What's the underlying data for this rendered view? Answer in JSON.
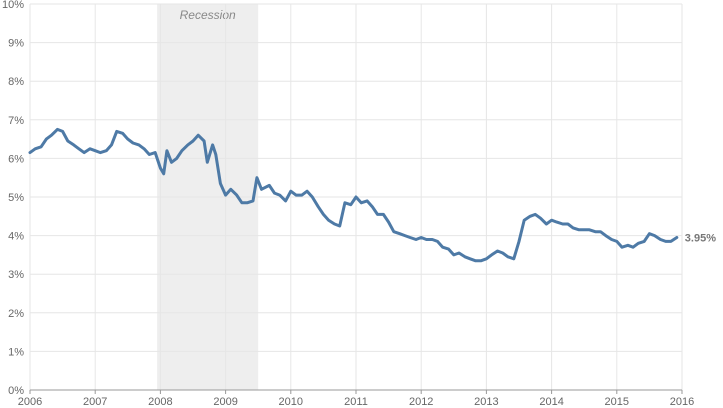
{
  "chart_data": {
    "type": "line",
    "title": "",
    "xlabel": "",
    "ylabel": "",
    "x_range": [
      2006,
      2016
    ],
    "ylim": [
      0,
      10
    ],
    "grid": true,
    "x_ticks": [
      "2006",
      "2007",
      "2008",
      "2009",
      "2010",
      "2011",
      "2012",
      "2013",
      "2014",
      "2015",
      "2016"
    ],
    "y_ticks": [
      "0%",
      "1%",
      "2%",
      "3%",
      "4%",
      "5%",
      "6%",
      "7%",
      "8%",
      "9%",
      "10%"
    ],
    "recession": {
      "label": "Recession",
      "start": 2007.95,
      "end": 2009.5
    },
    "end_label": "3.95%",
    "colors": {
      "line": "#4e7aa6",
      "recession_band": "#eeeeee",
      "grid": "#e6e6e6"
    },
    "series": [
      {
        "x": [
          2006.0,
          2006.08,
          2006.17,
          2006.25,
          2006.33,
          2006.42,
          2006.5,
          2006.58,
          2006.67,
          2006.75,
          2006.83,
          2006.92,
          2007.0,
          2007.08,
          2007.17,
          2007.25,
          2007.33,
          2007.42,
          2007.5,
          2007.58,
          2007.67,
          2007.75,
          2007.83,
          2007.92,
          2008.0,
          2008.05,
          2008.1,
          2008.17,
          2008.25,
          2008.33,
          2008.42,
          2008.5,
          2008.58,
          2008.67,
          2008.72,
          2008.8,
          2008.85,
          2008.92,
          2009.0,
          2009.08,
          2009.17,
          2009.25,
          2009.33,
          2009.42,
          2009.48,
          2009.55,
          2009.67,
          2009.75,
          2009.83,
          2009.92,
          2010.0,
          2010.08,
          2010.17,
          2010.25,
          2010.33,
          2010.42,
          2010.5,
          2010.58,
          2010.67,
          2010.75,
          2010.83,
          2010.92,
          2011.0,
          2011.08,
          2011.17,
          2011.25,
          2011.33,
          2011.42,
          2011.5,
          2011.58,
          2011.67,
          2011.75,
          2011.83,
          2011.92,
          2012.0,
          2012.08,
          2012.17,
          2012.25,
          2012.33,
          2012.42,
          2012.5,
          2012.58,
          2012.67,
          2012.75,
          2012.83,
          2012.92,
          2013.0,
          2013.08,
          2013.17,
          2013.25,
          2013.33,
          2013.42,
          2013.5,
          2013.58,
          2013.67,
          2013.75,
          2013.83,
          2013.92,
          2014.0,
          2014.08,
          2014.17,
          2014.25,
          2014.33,
          2014.42,
          2014.5,
          2014.58,
          2014.67,
          2014.75,
          2014.83,
          2014.92,
          2015.0,
          2015.08,
          2015.17,
          2015.25,
          2015.33,
          2015.42,
          2015.5,
          2015.58,
          2015.67,
          2015.75,
          2015.83,
          2015.92
        ],
        "values": [
          6.15,
          6.25,
          6.3,
          6.5,
          6.6,
          6.75,
          6.7,
          6.45,
          6.35,
          6.25,
          6.15,
          6.25,
          6.2,
          6.15,
          6.2,
          6.35,
          6.7,
          6.65,
          6.5,
          6.4,
          6.35,
          6.25,
          6.1,
          6.15,
          5.75,
          5.6,
          6.2,
          5.9,
          6.0,
          6.2,
          6.35,
          6.45,
          6.6,
          6.45,
          5.9,
          6.35,
          6.1,
          5.35,
          5.05,
          5.2,
          5.05,
          4.85,
          4.85,
          4.9,
          5.5,
          5.2,
          5.3,
          5.1,
          5.05,
          4.9,
          5.15,
          5.05,
          5.05,
          5.15,
          5.0,
          4.75,
          4.55,
          4.4,
          4.3,
          4.25,
          4.85,
          4.8,
          5.0,
          4.85,
          4.9,
          4.75,
          4.55,
          4.55,
          4.35,
          4.1,
          4.05,
          4.0,
          3.95,
          3.9,
          3.95,
          3.9,
          3.9,
          3.85,
          3.7,
          3.65,
          3.5,
          3.55,
          3.45,
          3.4,
          3.35,
          3.35,
          3.4,
          3.5,
          3.6,
          3.55,
          3.45,
          3.4,
          3.85,
          4.4,
          4.5,
          4.55,
          4.45,
          4.3,
          4.4,
          4.35,
          4.3,
          4.3,
          4.2,
          4.15,
          4.15,
          4.15,
          4.1,
          4.1,
          4.0,
          3.9,
          3.85,
          3.7,
          3.75,
          3.7,
          3.8,
          3.85,
          4.05,
          4.0,
          3.9,
          3.85,
          3.85,
          3.95
        ]
      }
    ]
  }
}
